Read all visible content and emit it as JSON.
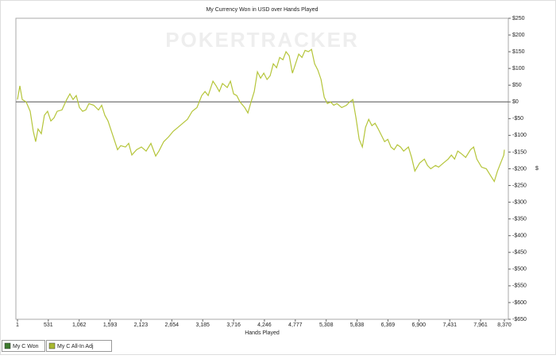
{
  "chart_data": {
    "type": "line",
    "title": "My Currency Won in USD over Hands Played",
    "watermark": "POKERTRACKER",
    "x_label": "Hands Played",
    "y_label": "$",
    "xlim": [
      1,
      8370
    ],
    "xticks": [
      1,
      531,
      {
        "value": 1062,
        "label": "1,062"
      },
      {
        "value": 1593,
        "label": "1,593"
      },
      {
        "value": 2123,
        "label": "2,123"
      },
      {
        "value": 2654,
        "label": "2,654"
      },
      {
        "value": 3185,
        "label": "3,185"
      },
      {
        "value": 3716,
        "label": "3,716"
      },
      {
        "value": 4246,
        "label": "4,246"
      },
      {
        "value": 4777,
        "label": "4,777"
      },
      {
        "value": 5308,
        "label": "5,308"
      },
      {
        "value": 5838,
        "label": "5,838"
      },
      {
        "value": 6369,
        "label": "6,369"
      },
      {
        "value": 6900,
        "label": "6,900"
      },
      {
        "value": 7431,
        "label": "7,431"
      },
      {
        "value": 7961,
        "label": "7,961"
      },
      {
        "value": 8370,
        "label": "8,370"
      }
    ],
    "ylim": [
      -650,
      250
    ],
    "yticks": [
      {
        "value": 250,
        "label": "$250"
      },
      {
        "value": 200,
        "label": "$200"
      },
      {
        "value": 150,
        "label": "$150"
      },
      {
        "value": 100,
        "label": "$100"
      },
      {
        "value": 50,
        "label": "$50"
      },
      {
        "value": 0,
        "label": "$0"
      },
      {
        "value": -50,
        "label": "-$50"
      },
      {
        "value": -100,
        "label": "-$100"
      },
      {
        "value": -150,
        "label": "-$150"
      },
      {
        "value": -200,
        "label": "-$200"
      },
      {
        "value": -250,
        "label": "-$250"
      },
      {
        "value": -300,
        "label": "-$300"
      },
      {
        "value": -350,
        "label": "-$350"
      },
      {
        "value": -400,
        "label": "-$400"
      },
      {
        "value": -450,
        "label": "-$450"
      },
      {
        "value": -500,
        "label": "-$500"
      },
      {
        "value": -550,
        "label": "-$550"
      },
      {
        "value": -600,
        "label": "-$600"
      },
      {
        "value": -650,
        "label": "-$650"
      }
    ],
    "legend": [
      {
        "name": "My C Won",
        "color": "#3d7a2e"
      },
      {
        "name": "My C All-In Adj",
        "color": "#a8b830"
      }
    ],
    "line_color": "#b5c53a",
    "x": [
      1,
      42,
      83,
      150,
      219,
      273,
      314,
      355,
      410,
      464,
      519,
      574,
      628,
      683,
      765,
      847,
      902,
      956,
      1011,
      1066,
      1120,
      1175,
      1230,
      1311,
      1393,
      1448,
      1503,
      1557,
      1639,
      1721,
      1776,
      1858,
      1912,
      1967,
      2049,
      2131,
      2213,
      2295,
      2377,
      2432,
      2514,
      2596,
      2678,
      2760,
      2842,
      2923,
      3005,
      3087,
      3169,
      3224,
      3279,
      3361,
      3415,
      3470,
      3525,
      3607,
      3661,
      3716,
      3771,
      3825,
      3907,
      3962,
      4016,
      4071,
      4126,
      4180,
      4235,
      4290,
      4344,
      4399,
      4454,
      4508,
      4563,
      4617,
      4672,
      4727,
      4781,
      4836,
      4891,
      4945,
      5000,
      5055,
      5109,
      5164,
      5219,
      5273,
      5328,
      5383,
      5437,
      5492,
      5574,
      5656,
      5710,
      5765,
      5820,
      5874,
      5929,
      5984,
      6038,
      6093,
      6148,
      6202,
      6257,
      6311,
      6366,
      6421,
      6475,
      6530,
      6585,
      6639,
      6721,
      6776,
      6831,
      6913,
      6995,
      7049,
      7104,
      7186,
      7240,
      7322,
      7404,
      7459,
      7514,
      7568,
      7623,
      7705,
      7787,
      7842,
      7896,
      7978,
      8060,
      8142,
      8197,
      8251,
      8306,
      8361,
      8370
    ],
    "values": [
      7,
      48,
      7,
      0,
      -28,
      -88,
      -119,
      -81,
      -95,
      -40,
      -28,
      -57,
      -48,
      -28,
      -24,
      7,
      24,
      7,
      19,
      -17,
      -28,
      -24,
      -5,
      -10,
      -24,
      -10,
      -40,
      -57,
      -100,
      -143,
      -131,
      -135,
      -124,
      -159,
      -143,
      -135,
      -147,
      -124,
      -162,
      -147,
      -119,
      -105,
      -88,
      -76,
      -64,
      -52,
      -28,
      -17,
      19,
      31,
      19,
      62,
      48,
      31,
      55,
      43,
      62,
      24,
      19,
      0,
      -17,
      -33,
      0,
      31,
      90,
      71,
      86,
      67,
      78,
      114,
      102,
      133,
      126,
      150,
      138,
      86,
      114,
      143,
      133,
      154,
      150,
      157,
      114,
      95,
      67,
      14,
      -5,
      0,
      -10,
      -5,
      -17,
      -10,
      0,
      7,
      -48,
      -112,
      -135,
      -76,
      -52,
      -71,
      -64,
      -81,
      -100,
      -119,
      -112,
      -135,
      -143,
      -128,
      -135,
      -147,
      -135,
      -166,
      -207,
      -183,
      -171,
      -190,
      -200,
      -190,
      -195,
      -183,
      -171,
      -159,
      -171,
      -147,
      -154,
      -166,
      -143,
      -135,
      -171,
      -195,
      -200,
      -223,
      -238,
      -207,
      -183,
      -159,
      -143
    ]
  }
}
